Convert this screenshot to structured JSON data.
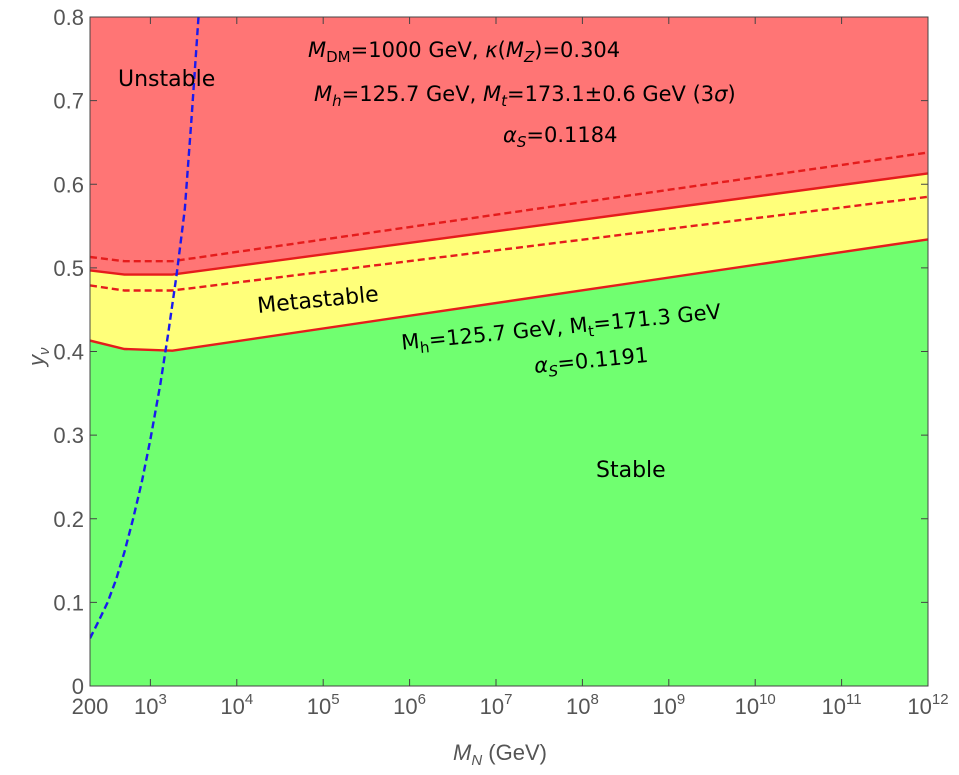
{
  "chart_data": {
    "type": "area",
    "xlabel": {
      "main": "M",
      "sub": "N",
      "unit": " (GeV)"
    },
    "ylabel": {
      "main": "y",
      "sub": "ν"
    },
    "x_scale": "log",
    "xlim": [
      200,
      1000000000000
    ],
    "ylim": [
      0,
      0.8
    ],
    "grid": false,
    "x_ticks": [
      {
        "value": 200,
        "label": "200"
      },
      {
        "value": 1000,
        "label": "10",
        "exp": "3"
      },
      {
        "value": 10000,
        "label": "10",
        "exp": "4"
      },
      {
        "value": 100000,
        "label": "10",
        "exp": "5"
      },
      {
        "value": 1000000,
        "label": "10",
        "exp": "6"
      },
      {
        "value": 10000000,
        "label": "10",
        "exp": "7"
      },
      {
        "value": 100000000,
        "label": "10",
        "exp": "8"
      },
      {
        "value": 1000000000,
        "label": "10",
        "exp": "9"
      },
      {
        "value": 10000000000,
        "label": "10",
        "exp": "10"
      },
      {
        "value": 100000000000,
        "label": "10",
        "exp": "11"
      },
      {
        "value": 1000000000000,
        "label": "10",
        "exp": "12"
      }
    ],
    "y_ticks": [
      {
        "value": 0,
        "label": "0"
      },
      {
        "value": 0.1,
        "label": "0.1"
      },
      {
        "value": 0.2,
        "label": "0.2"
      },
      {
        "value": 0.3,
        "label": "0.3"
      },
      {
        "value": 0.4,
        "label": "0.4"
      },
      {
        "value": 0.5,
        "label": "0.5"
      },
      {
        "value": 0.6,
        "label": "0.6"
      },
      {
        "value": 0.7,
        "label": "0.7"
      },
      {
        "value": 0.8,
        "label": "0.8"
      }
    ],
    "regions": [
      {
        "name": "Unstable",
        "color": "#ff7575"
      },
      {
        "name": "Metastable",
        "color": "#ffff7a"
      },
      {
        "name": "Stable",
        "color": "#70ff70"
      }
    ],
    "series": [
      {
        "style": "solid",
        "color": "#e51c1c",
        "x": [
          200,
          500,
          1800,
          1000000000000
        ],
        "y": [
          0.413,
          0.403,
          0.401,
          0.534
        ]
      },
      {
        "style": "solid",
        "color": "#e51c1c",
        "x": [
          200,
          500,
          1800,
          1000000000000
        ],
        "y": [
          0.497,
          0.492,
          0.492,
          0.613
        ]
      },
      {
        "style": "dashed",
        "color": "#e51c1c",
        "x": [
          200,
          500,
          1800,
          1000000000000
        ],
        "y": [
          0.479,
          0.473,
          0.473,
          0.585
        ]
      },
      {
        "style": "dashed",
        "color": "#e51c1c",
        "x": [
          200,
          500,
          1800,
          1000000000000
        ],
        "y": [
          0.513,
          0.508,
          0.508,
          0.638
        ]
      },
      {
        "style": "dashed",
        "color": "#1a1aee",
        "x": [
          200,
          250,
          320,
          400,
          500,
          630,
          800,
          1000,
          1300,
          1600,
          2000,
          2500,
          3000,
          3600
        ],
        "y": [
          0.057,
          0.077,
          0.1,
          0.127,
          0.16,
          0.2,
          0.245,
          0.295,
          0.36,
          0.42,
          0.49,
          0.57,
          0.68,
          0.8
        ]
      }
    ],
    "annotations": {
      "top_line1_a": "M",
      "top_line1_a_sub": "DM",
      "top_line1_b": "=1000 GeV, ",
      "top_line1_kappa": "κ",
      "top_line1_c": "(",
      "top_line1_mz": "M",
      "top_line1_mz_sub": "Z",
      "top_line1_d": ")=0.304",
      "top_line2_mh": "M",
      "top_line2_mh_sub": "h",
      "top_line2_a": "=125.7 GeV, ",
      "top_line2_mt": "M",
      "top_line2_mt_sub": "t",
      "top_line2_b": "=173.1±0.6 GeV (3",
      "top_line2_sigma": "σ",
      "top_line2_c": ")",
      "top_line3_alpha": "α",
      "top_line3_sub": "S",
      "top_line3_a": "=0.1184",
      "bottom_line1_mh": "M",
      "bottom_line1_mh_sub": "h",
      "bottom_line1_a": "=125.7 GeV, ",
      "bottom_line1_mt": "M",
      "bottom_line1_mt_sub": "t",
      "bottom_line1_b": "=171.3 GeV",
      "bottom_line2_alpha": "α",
      "bottom_line2_sub": "S",
      "bottom_line2_a": "=0.1191"
    }
  }
}
